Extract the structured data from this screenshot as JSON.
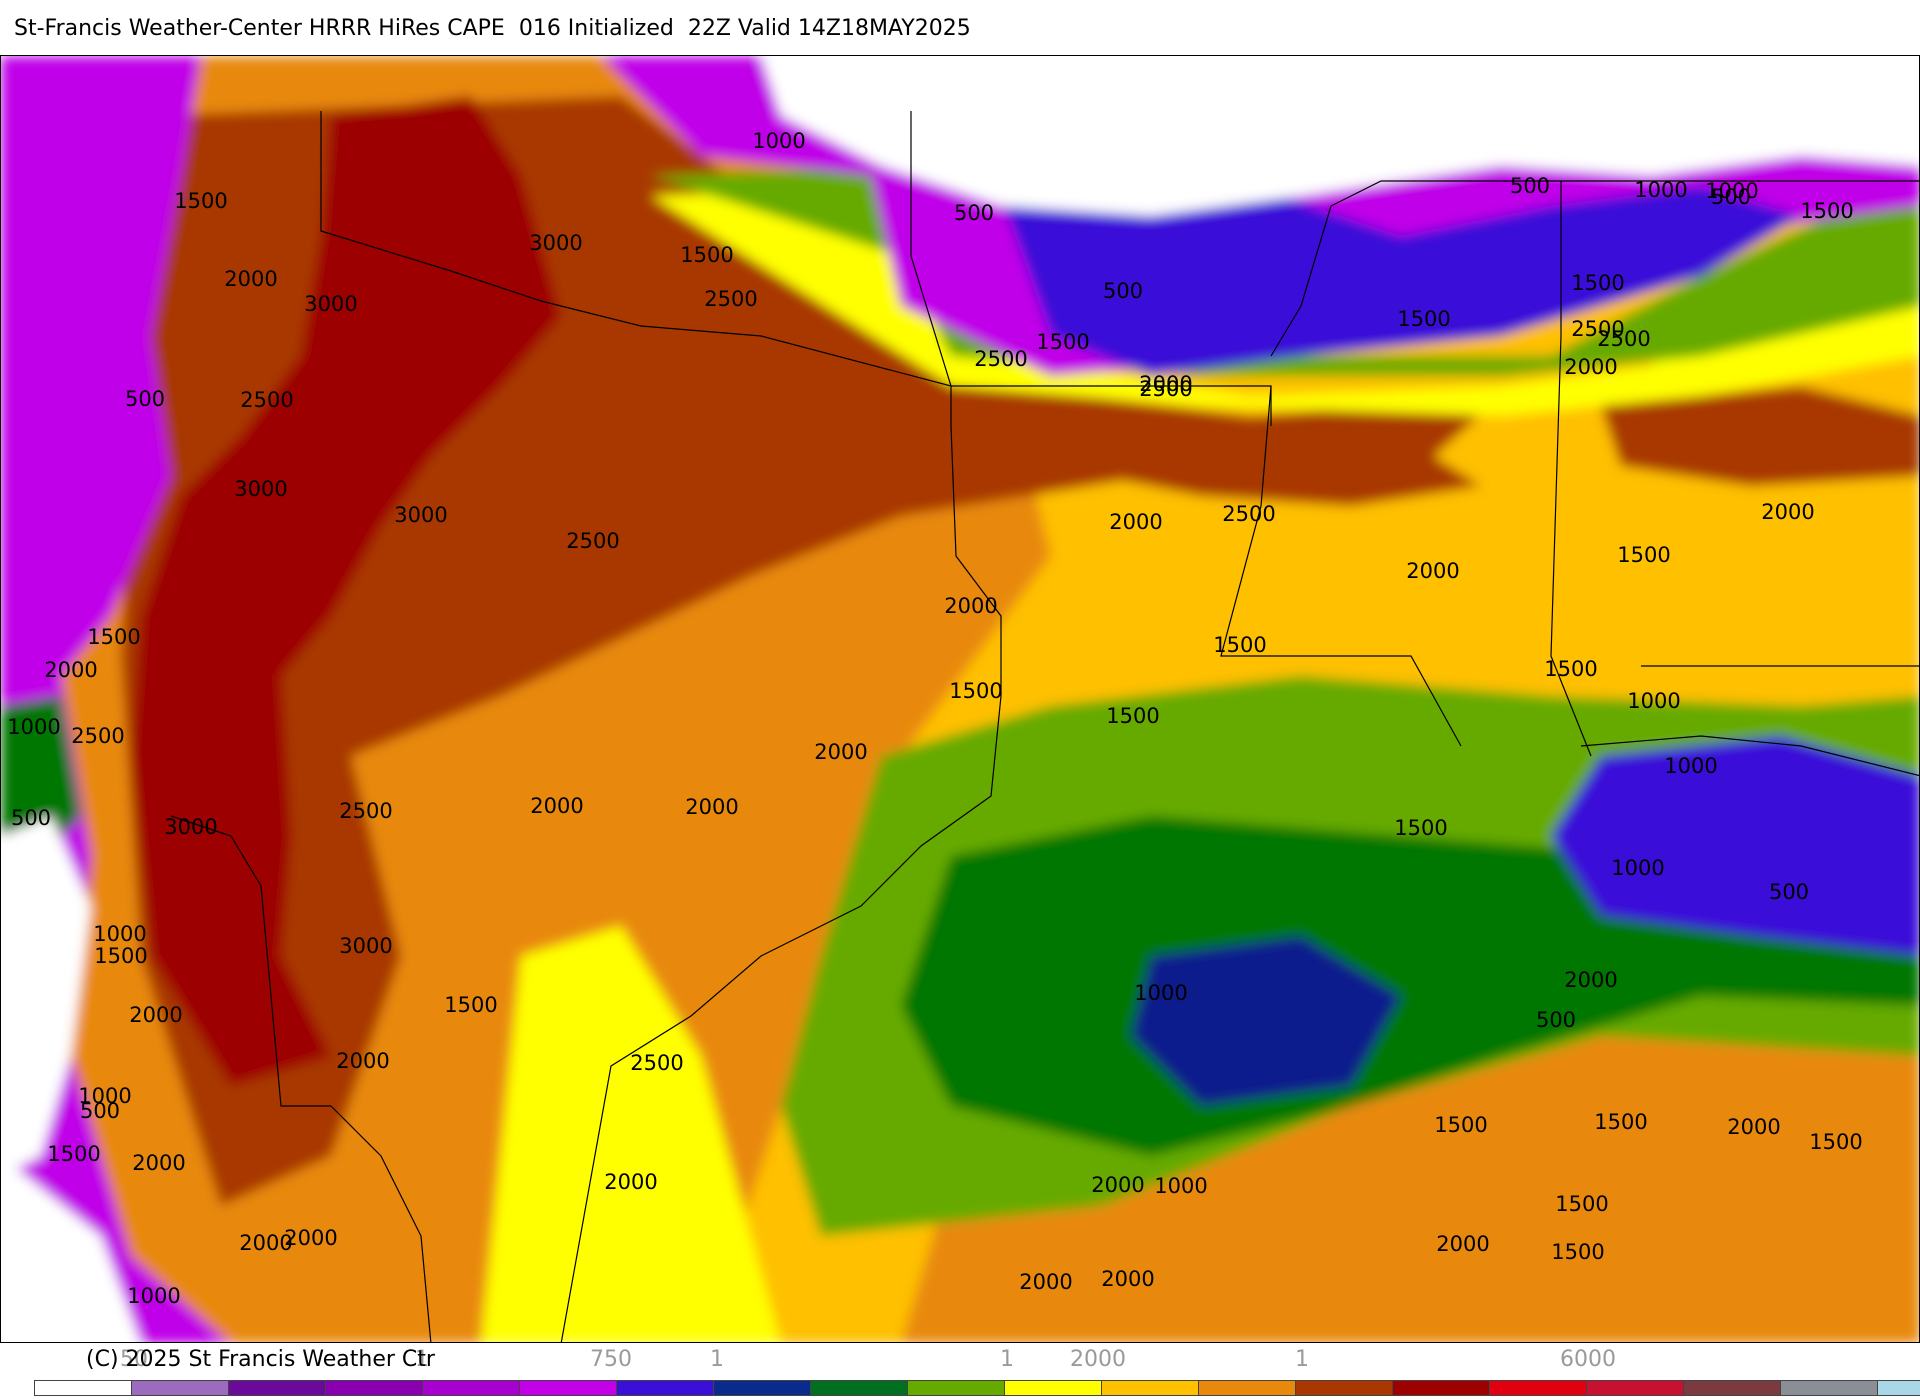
{
  "header": {
    "title": "St-Francis Weather-Center HRRR HiRes CAPE  016 Initialized  22Z Valid 14Z18MAY2025"
  },
  "map": {
    "product": "CAPE",
    "colors": {
      "very_high": "#9c0000",
      "high": "#a83800",
      "medium_high": "#e8890c",
      "medium": "#ffc000",
      "low_medium": "#ffff00",
      "low": "#66aa00",
      "lower": "#007700",
      "very_low": "#0a1e8c",
      "minimal": "#3a10d8",
      "trace": "#c000e8",
      "none": "#ffffff"
    },
    "contour_labels": [
      "1000",
      "500",
      "500",
      "500",
      "1000",
      "1000",
      "500",
      "1500",
      "1500",
      "2000",
      "3000",
      "3000",
      "1500",
      "2500",
      "1500",
      "2500",
      "2500",
      "2000",
      "1500",
      "1500",
      "2000",
      "2500",
      "2500",
      "500",
      "2500",
      "3000",
      "3000",
      "2500",
      "2000",
      "2500",
      "2000",
      "2000",
      "2000",
      "1500",
      "1500",
      "2000",
      "1500",
      "1500",
      "1500",
      "1500",
      "1000",
      "1000",
      "2000",
      "2500",
      "2000",
      "2000",
      "1500",
      "1000",
      "500",
      "1000",
      "500",
      "2500",
      "3000",
      "3000",
      "1000",
      "1500",
      "1000",
      "2000",
      "2000",
      "1500",
      "1500",
      "2000",
      "2500",
      "500",
      "1000",
      "500",
      "1500",
      "2000",
      "2000",
      "2000",
      "1500",
      "2000",
      "1500",
      "2000",
      "1500",
      "2000",
      "2000",
      "2000",
      "1000",
      "1500",
      "2000",
      "2000",
      "1500",
      "1000"
    ]
  },
  "footer": {
    "copyright": "(C) 2025 St Francis Weather Ctr",
    "tick_labels": [
      "50",
      "1",
      "750",
      "1",
      "1",
      "2000",
      "1",
      "6000"
    ]
  },
  "legend": {
    "colors": [
      "#ffffff",
      "#9b6bc0",
      "#6a0a9a",
      "#8a00b0",
      "#a800d0",
      "#c400e8",
      "#3a10d8",
      "#0a2a8c",
      "#007020",
      "#66aa00",
      "#ffff00",
      "#ffc000",
      "#e8890c",
      "#a83800",
      "#9c0000",
      "#e00010",
      "#c81030",
      "#7a3a40",
      "#8a8f96",
      "#a8d8e8"
    ]
  }
}
